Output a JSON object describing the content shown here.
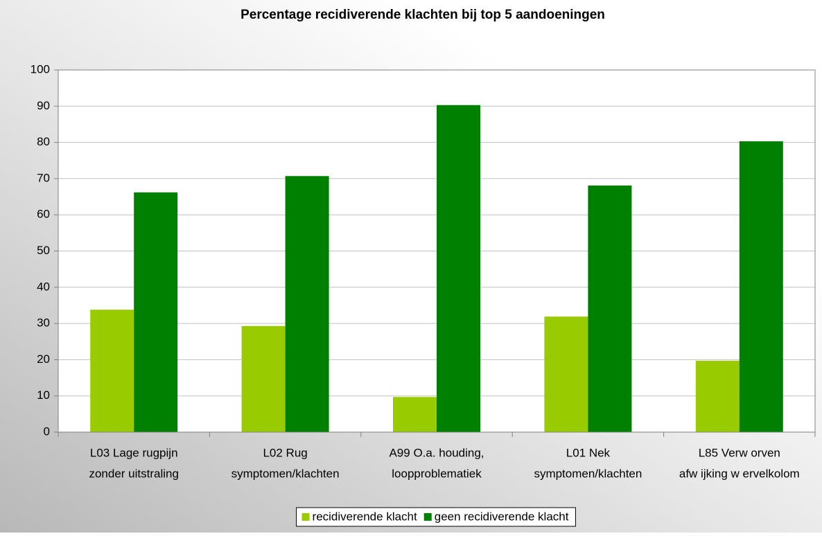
{
  "chart_data": {
    "type": "bar",
    "title": "Percentage recidiverende klachten bij top 5 aandoeningen",
    "categories": [
      [
        "L03 Lage rugpijn",
        "zonder uitstraling"
      ],
      [
        "L02 Rug",
        "symptomen/klachten"
      ],
      [
        "A99 O.a. houding,",
        "loopproblematiek"
      ],
      [
        "L01 Nek",
        "symptomen/klachten"
      ],
      [
        "L85 Verw orven",
        "afw ijking w ervelkolom"
      ]
    ],
    "series": [
      {
        "name": "recidiverende klacht",
        "color": "#99cc00",
        "values": [
          33.8,
          29.3,
          9.7,
          31.9,
          19.7
        ]
      },
      {
        "name": "geen recidiverende klacht",
        "color": "#008000",
        "values": [
          66.2,
          70.7,
          90.3,
          68.1,
          80.3
        ]
      }
    ],
    "ylim": [
      0,
      100
    ],
    "yticks": [
      0,
      10,
      20,
      30,
      40,
      50,
      60,
      70,
      80,
      90,
      100
    ],
    "grid": true,
    "legend": "bottom"
  }
}
